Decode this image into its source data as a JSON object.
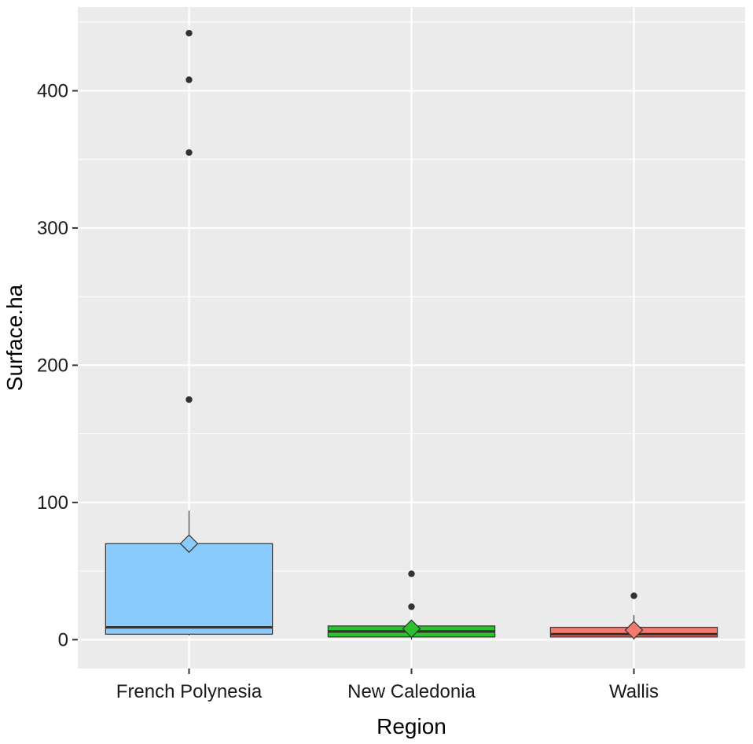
{
  "chart_data": {
    "type": "boxplot",
    "xlabel": "Region",
    "ylabel": "Surface.ha",
    "ylim": [
      -21,
      461
    ],
    "y_ticks": [
      0,
      100,
      200,
      300,
      400
    ],
    "y_tick_labels": [
      "0",
      "100",
      "200",
      "300",
      "400"
    ],
    "grid": true,
    "legend": "none",
    "panel_color": "#ebebeb",
    "grid_color": "#ffffff",
    "categories": [
      {
        "name": "French Polynesia",
        "color": "#89cbfd",
        "min": 3,
        "q1": 4,
        "median": 9,
        "q3": 70,
        "max": 94,
        "mean": 70,
        "outliers": [
          175,
          355,
          408,
          442
        ]
      },
      {
        "name": "New Caledonia",
        "color": "#2ec12e",
        "min": 0,
        "q1": 2,
        "median": 6,
        "q3": 10,
        "max": 10,
        "mean": 8,
        "outliers": [
          24,
          48
        ]
      },
      {
        "name": "Wallis",
        "color": "#f47a6f",
        "min": 0,
        "q1": 2,
        "median": 4,
        "q3": 9,
        "max": 18,
        "mean": 7,
        "outliers": [
          32
        ]
      }
    ]
  }
}
